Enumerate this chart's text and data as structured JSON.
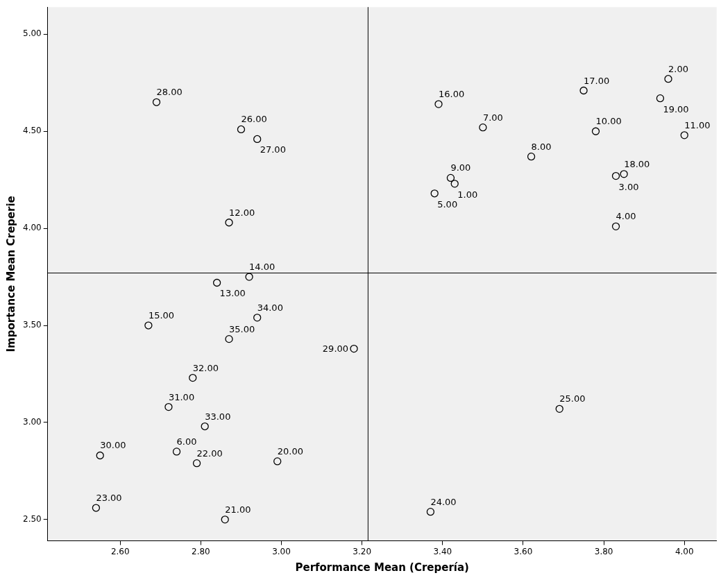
{
  "chart_data": {
    "type": "scatter",
    "xlabel": "Performance Mean (Crepería)",
    "ylabel": "Importance Mean Creperie",
    "marker": "circle",
    "grid": false,
    "legend": false,
    "xlim": [
      2.42,
      4.08
    ],
    "ylim": [
      2.39,
      5.14
    ],
    "xticks": [
      {
        "value": 2.6,
        "label": "2.60"
      },
      {
        "value": 2.8,
        "label": "2.80"
      },
      {
        "value": 3.0,
        "label": "3.00"
      },
      {
        "value": 3.2,
        "label": "3.20"
      },
      {
        "value": 3.4,
        "label": "3.40"
      },
      {
        "value": 3.6,
        "label": "3.60"
      },
      {
        "value": 3.8,
        "label": "3.80"
      },
      {
        "value": 4.0,
        "label": "4.00"
      }
    ],
    "yticks": [
      {
        "value": 2.5,
        "label": "2.50"
      },
      {
        "value": 3.0,
        "label": "3.00"
      },
      {
        "value": 3.5,
        "label": "3.50"
      },
      {
        "value": 4.0,
        "label": "4.00"
      },
      {
        "value": 4.5,
        "label": "4.50"
      },
      {
        "value": 5.0,
        "label": "5.00"
      }
    ],
    "ref_lines": [
      {
        "axis": "x",
        "value": 3.215,
        "color": "#000000"
      },
      {
        "axis": "y",
        "value": 3.77,
        "color": "#000000"
      }
    ],
    "series": [
      {
        "color": "#000000",
        "x": [
          3.43,
          3.96,
          3.83,
          3.83,
          3.38,
          2.74,
          3.5,
          3.62,
          3.42,
          3.78,
          4.0,
          2.87,
          2.84,
          2.92,
          2.67,
          3.39,
          3.75,
          3.85,
          3.94,
          2.99,
          2.86,
          2.79,
          2.54,
          3.37,
          3.69,
          2.9,
          2.94,
          2.69,
          3.18,
          2.55,
          2.72,
          2.78,
          2.81,
          2.94,
          2.87
        ],
        "values": [
          4.23,
          4.77,
          4.27,
          4.01,
          4.18,
          2.85,
          4.52,
          4.37,
          4.26,
          4.5,
          4.48,
          4.03,
          3.72,
          3.75,
          3.5,
          4.64,
          4.71,
          4.28,
          4.67,
          2.8,
          2.5,
          2.79,
          2.56,
          2.54,
          3.07,
          4.51,
          4.46,
          4.65,
          3.38,
          2.83,
          3.08,
          3.23,
          2.98,
          3.54,
          3.43
        ]
      }
    ],
    "annotations": [
      {
        "text": "1.00",
        "x": 3.43,
        "y": 4.23
      },
      {
        "text": "2.00",
        "x": 3.96,
        "y": 4.77
      },
      {
        "text": "3.00",
        "x": 3.83,
        "y": 4.27
      },
      {
        "text": "4.00",
        "x": 3.83,
        "y": 4.01
      },
      {
        "text": "5.00",
        "x": 3.38,
        "y": 4.18
      },
      {
        "text": "6.00",
        "x": 2.74,
        "y": 2.85
      },
      {
        "text": "7.00",
        "x": 3.5,
        "y": 4.52
      },
      {
        "text": "8.00",
        "x": 3.62,
        "y": 4.37
      },
      {
        "text": "9.00",
        "x": 3.42,
        "y": 4.26
      },
      {
        "text": "10.00",
        "x": 3.78,
        "y": 4.5
      },
      {
        "text": "11.00",
        "x": 4.0,
        "y": 4.48
      },
      {
        "text": "12.00",
        "x": 2.87,
        "y": 4.03
      },
      {
        "text": "13.00",
        "x": 2.84,
        "y": 3.72
      },
      {
        "text": "14.00",
        "x": 2.92,
        "y": 3.75
      },
      {
        "text": "15.00",
        "x": 2.67,
        "y": 3.5
      },
      {
        "text": "16.00",
        "x": 3.39,
        "y": 4.64
      },
      {
        "text": "17.00",
        "x": 3.75,
        "y": 4.71
      },
      {
        "text": "18.00",
        "x": 3.85,
        "y": 4.28
      },
      {
        "text": "19.00",
        "x": 3.94,
        "y": 4.67
      },
      {
        "text": "20.00",
        "x": 2.99,
        "y": 2.8
      },
      {
        "text": "21.00",
        "x": 2.86,
        "y": 2.5
      },
      {
        "text": "22.00",
        "x": 2.79,
        "y": 2.79
      },
      {
        "text": "23.00",
        "x": 2.54,
        "y": 2.56
      },
      {
        "text": "24.00",
        "x": 3.37,
        "y": 2.54
      },
      {
        "text": "25.00",
        "x": 3.69,
        "y": 3.07
      },
      {
        "text": "26.00",
        "x": 2.9,
        "y": 4.51
      },
      {
        "text": "27.00",
        "x": 2.94,
        "y": 4.46
      },
      {
        "text": "28.00",
        "x": 2.69,
        "y": 4.65
      },
      {
        "text": "29.00",
        "x": 3.18,
        "y": 3.38
      },
      {
        "text": "30.00",
        "x": 2.55,
        "y": 2.83
      },
      {
        "text": "31.00",
        "x": 2.72,
        "y": 3.08
      },
      {
        "text": "32.00",
        "x": 2.78,
        "y": 3.23
      },
      {
        "text": "33.00",
        "x": 2.81,
        "y": 2.98
      },
      {
        "text": "34.00",
        "x": 2.94,
        "y": 3.54
      },
      {
        "text": "35.00",
        "x": 2.87,
        "y": 3.43
      }
    ]
  }
}
